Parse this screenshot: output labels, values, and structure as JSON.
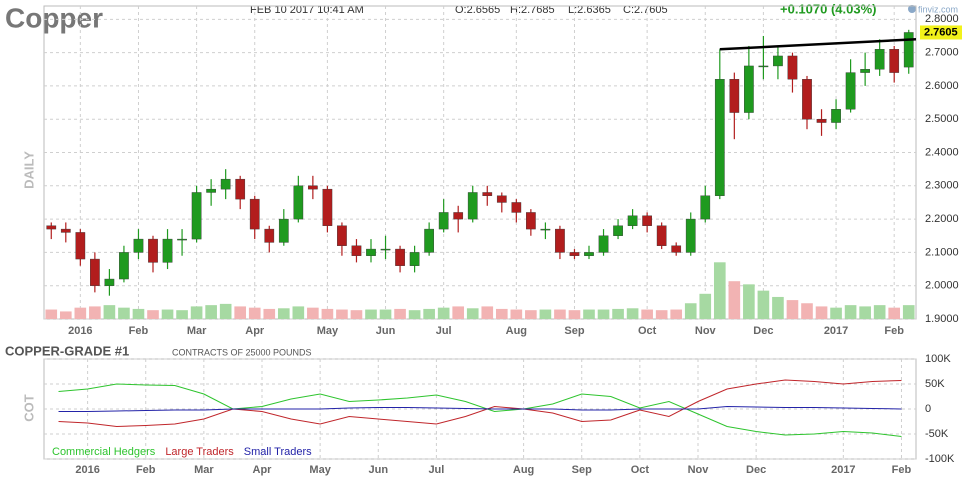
{
  "chart_data": [
    {
      "type": "candlestick",
      "title": "Copper",
      "date": "FEB 10 2017 10:41 AM",
      "ohlc_labels": [
        "O:2.6565",
        "H:2.7685",
        "L:2.6365",
        "C:2.7605"
      ],
      "change": "+0.1070 (4.03%)",
      "source": "finviz.com",
      "ylabel": "DAILY",
      "categories": [
        null,
        null,
        "2016",
        null,
        null,
        null,
        "Feb",
        null,
        null,
        null,
        "Mar",
        null,
        null,
        null,
        "Apr",
        null,
        null,
        null,
        null,
        "May",
        null,
        null,
        null,
        "Jun",
        null,
        null,
        null,
        "Jul",
        null,
        null,
        null,
        null,
        "Aug",
        null,
        null,
        null,
        "Sep",
        null,
        null,
        null,
        null,
        "Oct",
        null,
        null,
        null,
        "Nov",
        null,
        null,
        null,
        "Dec",
        null,
        null,
        null,
        null,
        "2017",
        null,
        null,
        null,
        "Feb",
        null
      ],
      "open": [
        2.18,
        2.17,
        2.16,
        2.08,
        2.0,
        2.02,
        2.1,
        2.14,
        2.07,
        2.14,
        2.14,
        2.28,
        2.29,
        2.32,
        2.26,
        2.17,
        2.13,
        2.2,
        2.3,
        2.29,
        2.18,
        2.12,
        2.09,
        2.11,
        2.11,
        2.06,
        2.1,
        2.17,
        2.22,
        2.2,
        2.28,
        2.27,
        2.25,
        2.22,
        2.17,
        2.17,
        2.1,
        2.09,
        2.1,
        2.15,
        2.18,
        2.21,
        2.18,
        2.12,
        2.1,
        2.2,
        2.27,
        2.62,
        2.52,
        2.66,
        2.66,
        2.69,
        2.62,
        2.5,
        2.49,
        2.53,
        2.64,
        2.65,
        2.71,
        2.6565
      ],
      "high": [
        2.19,
        2.19,
        2.17,
        2.1,
        2.05,
        2.12,
        2.17,
        2.15,
        2.17,
        2.17,
        2.3,
        2.32,
        2.35,
        2.33,
        2.27,
        2.18,
        2.23,
        2.33,
        2.33,
        2.3,
        2.19,
        2.14,
        2.14,
        2.15,
        2.12,
        2.12,
        2.19,
        2.26,
        2.24,
        2.3,
        2.3,
        2.28,
        2.26,
        2.23,
        2.19,
        2.18,
        2.11,
        2.12,
        2.17,
        2.2,
        2.23,
        2.22,
        2.19,
        2.13,
        2.22,
        2.3,
        2.71,
        2.64,
        2.72,
        2.75,
        2.72,
        2.7,
        2.63,
        2.53,
        2.56,
        2.68,
        2.7,
        2.74,
        2.72,
        2.7685
      ],
      "low": [
        2.14,
        2.13,
        2.06,
        1.98,
        1.97,
        2.01,
        2.08,
        2.04,
        2.05,
        2.09,
        2.13,
        2.24,
        2.26,
        2.23,
        2.14,
        2.1,
        2.12,
        2.19,
        2.26,
        2.16,
        2.09,
        2.07,
        2.07,
        2.08,
        2.04,
        2.04,
        2.09,
        2.16,
        2.16,
        2.19,
        2.24,
        2.22,
        2.19,
        2.15,
        2.14,
        2.08,
        2.08,
        2.08,
        2.09,
        2.14,
        2.17,
        2.16,
        2.11,
        2.09,
        2.09,
        2.19,
        2.26,
        2.44,
        2.5,
        2.62,
        2.62,
        2.58,
        2.47,
        2.45,
        2.47,
        2.52,
        2.6,
        2.63,
        2.61,
        2.6365
      ],
      "close": [
        2.17,
        2.16,
        2.08,
        2.0,
        2.02,
        2.1,
        2.14,
        2.07,
        2.14,
        2.14,
        2.28,
        2.29,
        2.32,
        2.26,
        2.17,
        2.13,
        2.2,
        2.3,
        2.29,
        2.18,
        2.12,
        2.09,
        2.11,
        2.11,
        2.06,
        2.1,
        2.17,
        2.22,
        2.2,
        2.28,
        2.27,
        2.25,
        2.22,
        2.17,
        2.17,
        2.1,
        2.09,
        2.1,
        2.15,
        2.18,
        2.21,
        2.18,
        2.12,
        2.1,
        2.2,
        2.27,
        2.62,
        2.52,
        2.66,
        2.66,
        2.69,
        2.62,
        2.5,
        2.49,
        2.53,
        2.64,
        2.65,
        2.71,
        2.64,
        2.7605
      ],
      "volume": [
        15,
        12,
        18,
        20,
        22,
        18,
        16,
        14,
        15,
        14,
        20,
        22,
        24,
        20,
        18,
        16,
        17,
        20,
        18,
        16,
        15,
        14,
        15,
        15,
        16,
        14,
        16,
        18,
        20,
        17,
        20,
        16,
        15,
        14,
        15,
        15,
        14,
        15,
        15,
        16,
        17,
        15,
        14,
        15,
        25,
        40,
        90,
        60,
        55,
        45,
        35,
        30,
        25,
        20,
        18,
        22,
        20,
        22,
        18,
        22
      ],
      "colors": {
        "up": "#1f9a1f",
        "down": "#b21d1d",
        "volume_up": "#a6d9a2",
        "volume_down": "#f2b3b3"
      },
      "last_price_label": "2.7605",
      "trendline": {
        "x": [
          46,
          59.5
        ],
        "y": [
          2.71,
          2.74
        ]
      },
      "ylim": [
        1.9,
        2.84
      ],
      "yticks": [
        {
          "value": 1.9,
          "label": "1.9000"
        },
        {
          "value": 2.0,
          "label": "2.0000"
        },
        {
          "value": 2.1,
          "label": "2.1000"
        },
        {
          "value": 2.2,
          "label": "2.2000"
        },
        {
          "value": 2.3,
          "label": "2.3000"
        },
        {
          "value": 2.4,
          "label": "2.4000"
        },
        {
          "value": 2.5,
          "label": "2.5000"
        },
        {
          "value": 2.6,
          "label": "2.6000"
        },
        {
          "value": 2.7,
          "label": "2.7000"
        },
        {
          "value": 2.8,
          "label": "2.8000"
        }
      ],
      "grid": true
    },
    {
      "type": "line",
      "title": "COPPER-GRADE #1",
      "subtitle": "CONTRACTS OF 25000 POUNDS",
      "ylabel": "COT",
      "categories": [
        null,
        "2016",
        null,
        "Feb",
        null,
        "Mar",
        null,
        "Apr",
        null,
        "May",
        null,
        "Jun",
        null,
        "Jul",
        null,
        null,
        "Aug",
        null,
        "Sep",
        null,
        "Oct",
        null,
        "Nov",
        null,
        "Dec",
        null,
        null,
        "2017",
        null,
        "Feb"
      ],
      "series": [
        {
          "name": "Commercial Hedgers",
          "color": "#2ec42e",
          "values": [
            35000,
            40000,
            50000,
            48000,
            47000,
            30000,
            0,
            5000,
            20000,
            30000,
            15000,
            18000,
            22000,
            28000,
            15000,
            -5000,
            0,
            10000,
            30000,
            25000,
            2000,
            15000,
            -10000,
            -35000,
            -45000,
            -52000,
            -50000,
            -45000,
            -48000,
            -55000
          ]
        },
        {
          "name": "Large Traders",
          "color": "#c0262b",
          "values": [
            -25000,
            -28000,
            -35000,
            -33000,
            -30000,
            -20000,
            0,
            -5000,
            -20000,
            -30000,
            -15000,
            -20000,
            -25000,
            -30000,
            -15000,
            5000,
            0,
            -8000,
            -25000,
            -22000,
            -2000,
            -15000,
            15000,
            40000,
            50000,
            58000,
            55000,
            50000,
            55000,
            57000
          ]
        },
        {
          "name": "Small Traders",
          "color": "#2323a8",
          "values": [
            -5000,
            -5000,
            -4000,
            -3000,
            -2000,
            -2000,
            0,
            0,
            0,
            0,
            2000,
            3000,
            3000,
            2000,
            1000,
            0,
            0,
            0,
            -2000,
            -2000,
            0,
            0,
            0,
            5000,
            4000,
            3000,
            3000,
            2000,
            1000,
            0
          ]
        }
      ],
      "ylim": [
        -100000,
        100000
      ],
      "yticks": [
        {
          "value": 100000,
          "label": "100K"
        },
        {
          "value": 50000,
          "label": "50K"
        },
        0,
        {
          "value": -50000,
          "label": "-50K"
        },
        {
          "value": -100000,
          "label": "-100K"
        }
      ],
      "grid": true
    }
  ]
}
